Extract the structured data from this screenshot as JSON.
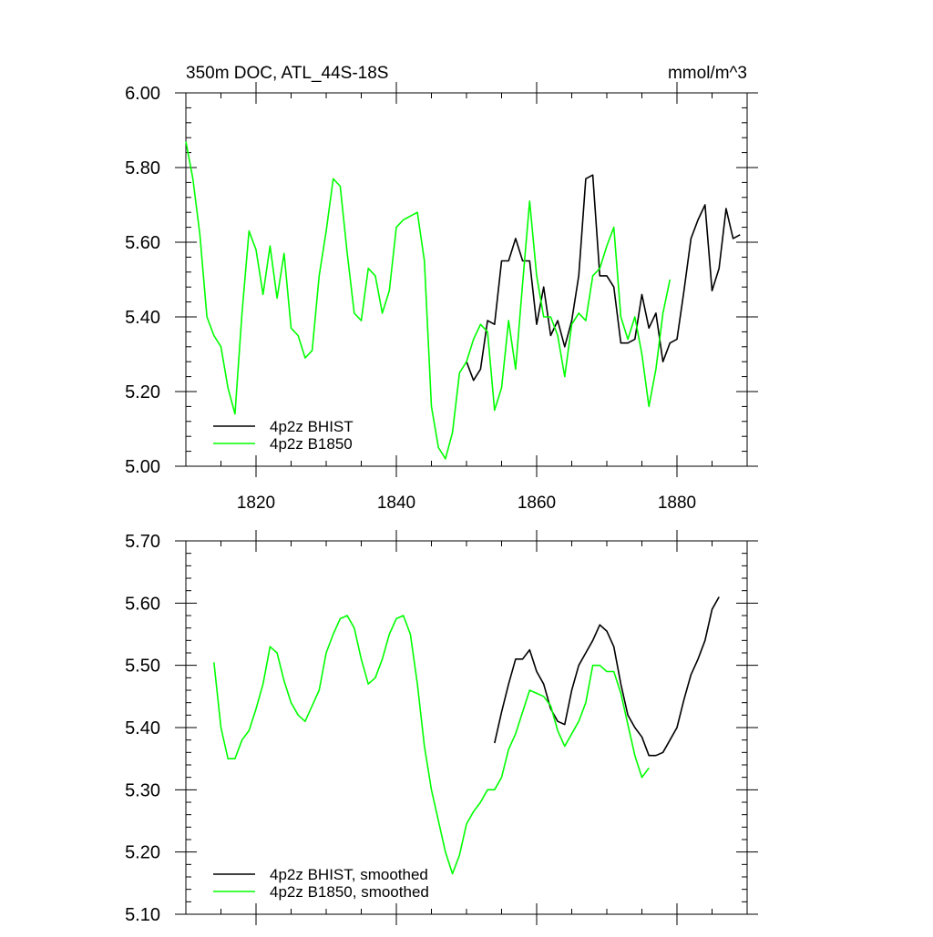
{
  "header": {
    "title": "350m DOC, ATL_44S-18S",
    "units": "mmol/m^3"
  },
  "colors": {
    "bhist": "#000000",
    "b1850": "#00ff00",
    "axis": "#000000"
  },
  "chart_data": [
    {
      "type": "line",
      "xlim": [
        1810,
        1890
      ],
      "ylim": [
        5.0,
        6.0
      ],
      "xticks": [
        1820,
        1840,
        1860,
        1880
      ],
      "xtick_labels": [
        "1820",
        "1840",
        "1860",
        "1880"
      ],
      "yticks": [
        5.0,
        5.2,
        5.4,
        5.6,
        5.8,
        6.0
      ],
      "ytick_labels": [
        "5.00",
        "5.20",
        "5.40",
        "5.60",
        "5.80",
        "6.00"
      ],
      "legend": "bottom-left",
      "series": [
        {
          "name": "4p2z BHIST",
          "color": "#000000",
          "x": [
            1850,
            1851,
            1852,
            1853,
            1854,
            1855,
            1856,
            1857,
            1858,
            1859,
            1860,
            1861,
            1862,
            1863,
            1864,
            1865,
            1866,
            1867,
            1868,
            1869,
            1870,
            1871,
            1872,
            1873,
            1874,
            1875,
            1876,
            1877,
            1878,
            1879,
            1880,
            1881,
            1882,
            1883,
            1884,
            1885,
            1886,
            1887,
            1888,
            1889
          ],
          "y": [
            5.28,
            5.23,
            5.26,
            5.39,
            5.38,
            5.55,
            5.55,
            5.61,
            5.55,
            5.55,
            5.38,
            5.48,
            5.35,
            5.39,
            5.32,
            5.39,
            5.51,
            5.77,
            5.78,
            5.51,
            5.51,
            5.48,
            5.33,
            5.33,
            5.34,
            5.46,
            5.37,
            5.41,
            5.28,
            5.33,
            5.34,
            5.47,
            5.61,
            5.66,
            5.7,
            5.47,
            5.53,
            5.69,
            5.61,
            5.62
          ]
        },
        {
          "name": "4p2z B1850",
          "color": "#00ff00",
          "x": [
            1810,
            1811,
            1812,
            1813,
            1814,
            1815,
            1816,
            1817,
            1818,
            1819,
            1820,
            1821,
            1822,
            1823,
            1824,
            1825,
            1826,
            1827,
            1828,
            1829,
            1830,
            1831,
            1832,
            1833,
            1834,
            1835,
            1836,
            1837,
            1838,
            1839,
            1840,
            1841,
            1842,
            1843,
            1844,
            1845,
            1846,
            1847,
            1848,
            1849,
            1850,
            1851,
            1852,
            1853,
            1854,
            1855,
            1856,
            1857,
            1858,
            1859,
            1860,
            1861,
            1862,
            1863,
            1864,
            1865,
            1866,
            1867,
            1868,
            1869,
            1870,
            1871,
            1872,
            1873,
            1874,
            1875,
            1876,
            1877,
            1878,
            1879
          ],
          "y": [
            5.87,
            5.77,
            5.62,
            5.4,
            5.35,
            5.32,
            5.21,
            5.14,
            5.41,
            5.63,
            5.58,
            5.46,
            5.59,
            5.45,
            5.57,
            5.37,
            5.35,
            5.29,
            5.31,
            5.51,
            5.63,
            5.77,
            5.75,
            5.57,
            5.41,
            5.39,
            5.53,
            5.51,
            5.41,
            5.47,
            5.64,
            5.66,
            5.67,
            5.68,
            5.55,
            5.16,
            5.05,
            5.02,
            5.09,
            5.25,
            5.28,
            5.34,
            5.38,
            5.36,
            5.15,
            5.21,
            5.39,
            5.26,
            5.49,
            5.71,
            5.51,
            5.4,
            5.4,
            5.35,
            5.24,
            5.38,
            5.41,
            5.39,
            5.51,
            5.53,
            5.59,
            5.64,
            5.4,
            5.34,
            5.4,
            5.3,
            5.16,
            5.26,
            5.41,
            5.5
          ]
        }
      ]
    },
    {
      "type": "line",
      "xlim": [
        1810,
        1890
      ],
      "ylim": [
        5.1,
        5.7
      ],
      "xticks": [
        1820,
        1840,
        1860,
        1880
      ],
      "xtick_labels": [
        "",
        "",
        "",
        ""
      ],
      "yticks": [
        5.1,
        5.2,
        5.3,
        5.4,
        5.5,
        5.6,
        5.7
      ],
      "ytick_labels": [
        "5.10",
        "5.20",
        "5.30",
        "5.40",
        "5.50",
        "5.60",
        "5.70"
      ],
      "legend": "bottom-left",
      "series": [
        {
          "name": "4p2z BHIST, smoothed",
          "color": "#000000",
          "x": [
            1854,
            1855,
            1856,
            1857,
            1858,
            1859,
            1860,
            1861,
            1862,
            1863,
            1864,
            1865,
            1866,
            1867,
            1868,
            1869,
            1870,
            1871,
            1872,
            1873,
            1874,
            1875,
            1876,
            1877,
            1878,
            1879,
            1880,
            1881,
            1882,
            1883,
            1884,
            1885,
            1886
          ],
          "y": [
            5.375,
            5.425,
            5.47,
            5.51,
            5.51,
            5.525,
            5.49,
            5.47,
            5.43,
            5.41,
            5.405,
            5.46,
            5.5,
            5.52,
            5.54,
            5.565,
            5.555,
            5.53,
            5.47,
            5.42,
            5.4,
            5.385,
            5.355,
            5.355,
            5.36,
            5.38,
            5.4,
            5.445,
            5.485,
            5.51,
            5.54,
            5.59,
            5.61
          ]
        },
        {
          "name": "4p2z B1850, smoothed",
          "color": "#00ff00",
          "x": [
            1814,
            1815,
            1816,
            1817,
            1818,
            1819,
            1820,
            1821,
            1822,
            1823,
            1824,
            1825,
            1826,
            1827,
            1828,
            1829,
            1830,
            1831,
            1832,
            1833,
            1834,
            1835,
            1836,
            1837,
            1838,
            1839,
            1840,
            1841,
            1842,
            1843,
            1844,
            1845,
            1846,
            1847,
            1848,
            1849,
            1850,
            1851,
            1852,
            1853,
            1854,
            1855,
            1856,
            1857,
            1858,
            1859,
            1860,
            1861,
            1862,
            1863,
            1864,
            1865,
            1866,
            1867,
            1868,
            1869,
            1870,
            1871,
            1872,
            1873,
            1874,
            1875,
            1876
          ],
          "y": [
            5.505,
            5.4,
            5.35,
            5.35,
            5.38,
            5.395,
            5.43,
            5.47,
            5.53,
            5.52,
            5.475,
            5.44,
            5.42,
            5.41,
            5.435,
            5.46,
            5.52,
            5.55,
            5.575,
            5.58,
            5.56,
            5.51,
            5.47,
            5.48,
            5.51,
            5.55,
            5.575,
            5.58,
            5.55,
            5.47,
            5.37,
            5.3,
            5.25,
            5.2,
            5.165,
            5.195,
            5.245,
            5.265,
            5.28,
            5.3,
            5.3,
            5.32,
            5.365,
            5.39,
            5.425,
            5.46,
            5.455,
            5.45,
            5.435,
            5.395,
            5.37,
            5.39,
            5.41,
            5.44,
            5.5,
            5.5,
            5.49,
            5.49,
            5.455,
            5.405,
            5.355,
            5.32,
            5.335
          ]
        }
      ]
    }
  ]
}
